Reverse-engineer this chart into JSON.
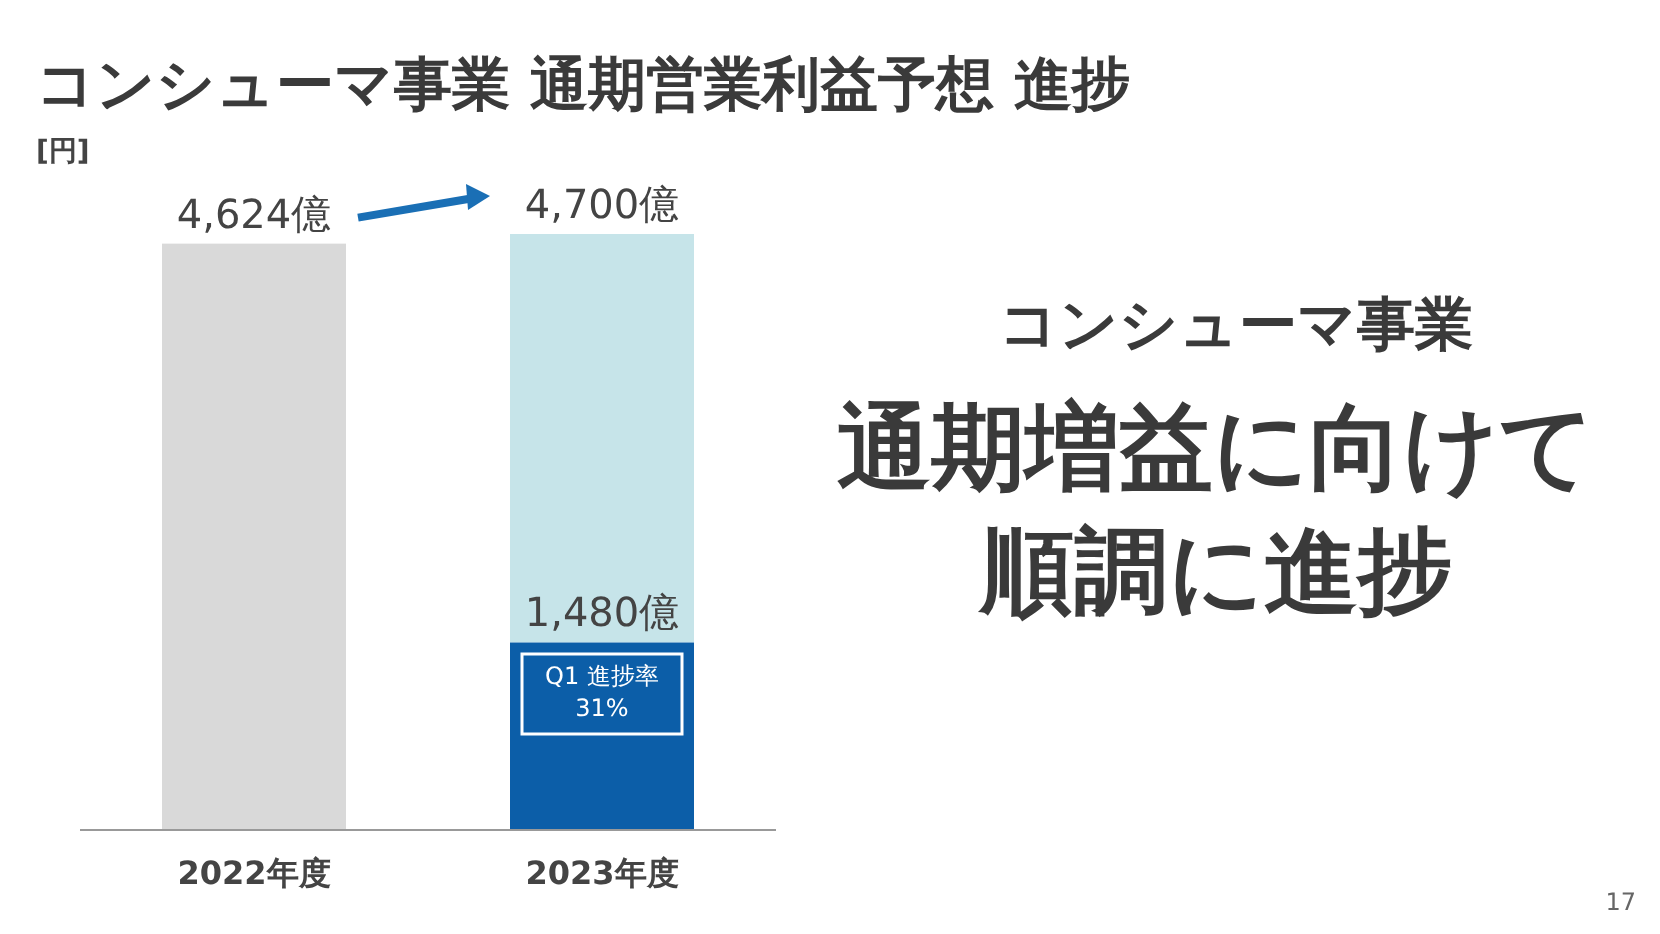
{
  "chart_data": {
    "type": "bar",
    "title": "コンシューマ事業 通期営業利益予想 進捗",
    "ylabel": "[円]",
    "categories": [
      "2022年度",
      "2023年度"
    ],
    "stacked": true,
    "totals": [
      null,
      "4,700億"
    ],
    "series": [
      {
        "color": "#d9d9d9",
        "values": [
          4624,
          null
        ],
        "value_labels": [
          "4,624億",
          null
        ]
      },
      {
        "color": "#0c5ea8",
        "values": [
          null,
          1480
        ],
        "value_labels": [
          null,
          "1,480億"
        ]
      },
      {
        "color": "#c6e4e9",
        "values": [
          null,
          3220
        ]
      }
    ],
    "annotations": [
      "Q1 進捗率\n31%",
      "コンシューマ事業",
      "通期増益に向けて",
      "順調に進捗",
      "17"
    ]
  }
}
